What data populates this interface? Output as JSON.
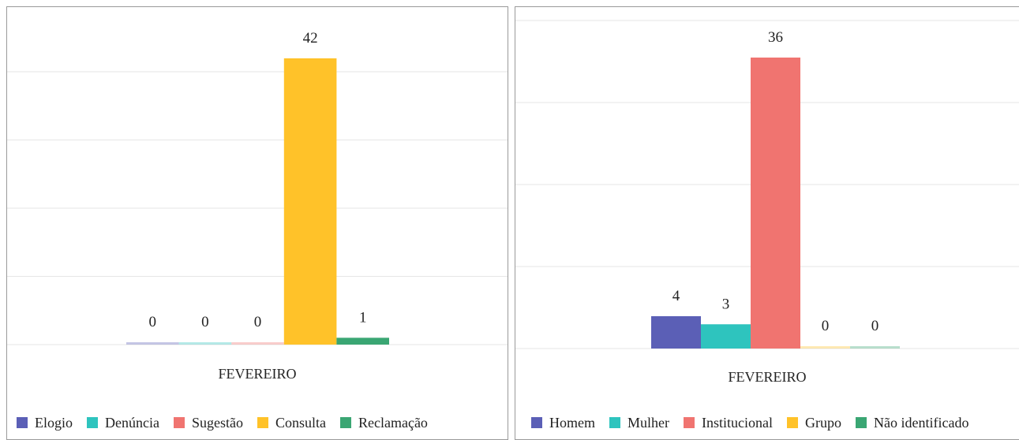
{
  "chart_data": [
    {
      "type": "bar",
      "categories": [
        "FEVEREIRO"
      ],
      "series": [
        {
          "name": "Elogio",
          "values": [
            0
          ],
          "color": "#5b5fb6"
        },
        {
          "name": "Denúncia",
          "values": [
            0
          ],
          "color": "#2ec4be"
        },
        {
          "name": "Sugestão",
          "values": [
            0
          ],
          "color": "#f07470"
        },
        {
          "name": "Consulta",
          "values": [
            42
          ],
          "color": "#ffc229"
        },
        {
          "name": "Reclamação",
          "values": [
            1
          ],
          "color": "#3aa673"
        }
      ],
      "ylim": [
        0,
        45
      ],
      "grid": true,
      "legend": "bottom"
    },
    {
      "type": "bar",
      "categories": [
        "FEVEREIRO"
      ],
      "series": [
        {
          "name": "Homem",
          "values": [
            4
          ],
          "color": "#5b5fb6"
        },
        {
          "name": "Mulher",
          "values": [
            3
          ],
          "color": "#2ec4be"
        },
        {
          "name": "Institucional",
          "values": [
            36
          ],
          "color": "#f07470"
        },
        {
          "name": "Grupo",
          "values": [
            0
          ],
          "color": "#ffc229"
        },
        {
          "name": "Não identificado",
          "values": [
            0
          ],
          "color": "#3aa673"
        }
      ],
      "ylim": [
        0,
        40
      ],
      "grid": true,
      "legend": "bottom"
    }
  ]
}
